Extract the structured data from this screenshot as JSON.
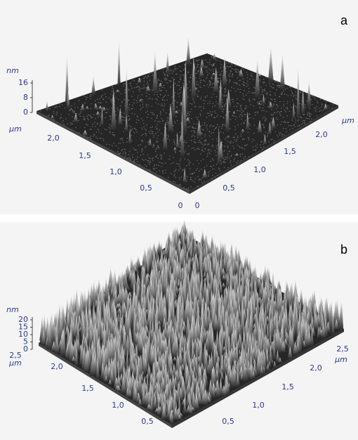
{
  "panels": [
    {
      "label": "a",
      "z_unit": "nm",
      "z_ticks": [
        16,
        8,
        0
      ],
      "left_unit": "μm",
      "right_unit": "μm",
      "left_ticks": [
        "2,0",
        "1,5",
        "1,0",
        "0,5",
        "0"
      ],
      "right_ticks": [
        "0",
        "0,5",
        "1,0",
        "1,5",
        "2,0"
      ]
    },
    {
      "label": "b",
      "z_unit": "nm",
      "z_ticks": [
        20,
        15,
        10,
        5,
        0
      ],
      "left_unit": "μm",
      "right_unit": "μm",
      "left_ticks": [
        "2,5",
        "2,0",
        "1,5",
        "1,0",
        "0,5"
      ],
      "right_ticks": [
        "0,5",
        "1,0",
        "1,5",
        "2,0",
        "2,5"
      ]
    }
  ]
}
